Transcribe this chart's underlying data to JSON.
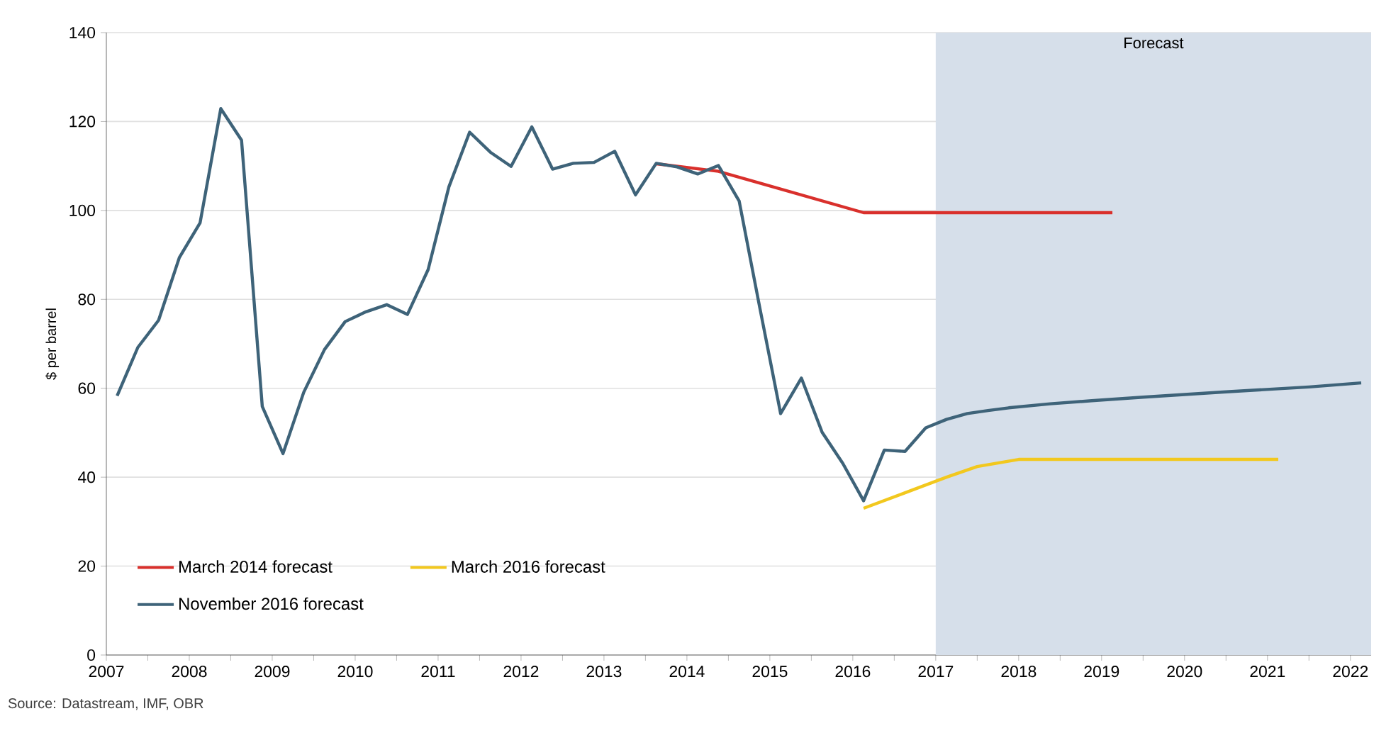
{
  "chart_data": {
    "type": "line",
    "ylabel": "$ per barrel",
    "annotations": [
      "Source: Datastream, IMF, OBR"
    ],
    "xlim": [
      2007,
      2022.25
    ],
    "ylim": [
      0,
      140
    ],
    "yticks": [
      0,
      20,
      40,
      60,
      80,
      100,
      120,
      140
    ],
    "xticks": [
      2007,
      {
        "value": 2007.5,
        "label": null
      },
      2008,
      {
        "value": 2008.5,
        "label": null
      },
      2009,
      {
        "value": 2009.5,
        "label": null
      },
      2010,
      {
        "value": 2010.5,
        "label": null
      },
      2011,
      {
        "value": 2011.5,
        "label": null
      },
      2012,
      {
        "value": 2012.5,
        "label": null
      },
      2013,
      {
        "value": 2013.5,
        "label": null
      },
      2014,
      {
        "value": 2014.5,
        "label": null
      },
      2015,
      {
        "value": 2015.5,
        "label": null
      },
      2016,
      {
        "value": 2016.5,
        "label": null
      },
      2017,
      {
        "value": 2017.5,
        "label": null
      },
      2018,
      {
        "value": 2018.5,
        "label": null
      },
      2019,
      {
        "value": 2019.5,
        "label": null
      },
      2020,
      {
        "value": 2020.5,
        "label": null
      },
      2021,
      {
        "value": 2021.5,
        "label": null
      },
      2022
    ],
    "grid": "y",
    "legend": "bottom left",
    "bands": [
      {
        "axis": "x",
        "from": 2017,
        "to": 2022.25,
        "label": "Forecast",
        "color": "#d6dfea"
      }
    ],
    "series": [
      {
        "name": "March 2014 forecast",
        "color": "#d9302c",
        "x": [
          2013.63,
          2014.38,
          2016.13,
          2019.13
        ],
        "values": [
          110.5,
          108.8,
          99.5,
          99.5
        ]
      },
      {
        "name": "March 2016 forecast",
        "color": "#f2c81e",
        "x": [
          2016.13,
          2016.63,
          2017.13,
          2017.5,
          2018.0,
          2021.13
        ],
        "values": [
          33,
          36.5,
          40,
          42.4,
          44,
          44
        ]
      },
      {
        "name": "November 2016 forecast",
        "color": "#3e6379",
        "x": [
          2007.13,
          2007.38,
          2007.63,
          2007.88,
          2008.13,
          2008.38,
          2008.63,
          2008.88,
          2009.13,
          2009.38,
          2009.63,
          2009.88,
          2010.13,
          2010.38,
          2010.63,
          2010.88,
          2011.13,
          2011.38,
          2011.63,
          2011.88,
          2012.13,
          2012.38,
          2012.63,
          2012.88,
          2013.13,
          2013.38,
          2013.63,
          2013.88,
          2014.13,
          2014.38,
          2014.63,
          2014.88,
          2015.13,
          2015.38,
          2015.63,
          2015.88,
          2016.13,
          2016.38,
          2016.63,
          2016.88,
          2017.13,
          2017.38,
          2017.63,
          2017.88,
          2018.38,
          2018.88,
          2019.5,
          2020.5,
          2021.5,
          2022.13
        ],
        "values": [
          58.3,
          69.2,
          75.3,
          89.4,
          97.2,
          122.9,
          115.8,
          55.9,
          45.3,
          59.1,
          68.7,
          75,
          77.2,
          78.8,
          76.6,
          86.7,
          105.3,
          117.6,
          113.1,
          109.9,
          118.8,
          109.3,
          110.6,
          110.8,
          113.3,
          103.5,
          110.6,
          109.8,
          108.2,
          110.1,
          102.1,
          78,
          54.3,
          62.3,
          50.1,
          43.1,
          34.7,
          46.1,
          45.8,
          51.1,
          53,
          54.3,
          55,
          55.6,
          56.5,
          57.2,
          58,
          59.2,
          60.3,
          61.2
        ]
      }
    ]
  }
}
